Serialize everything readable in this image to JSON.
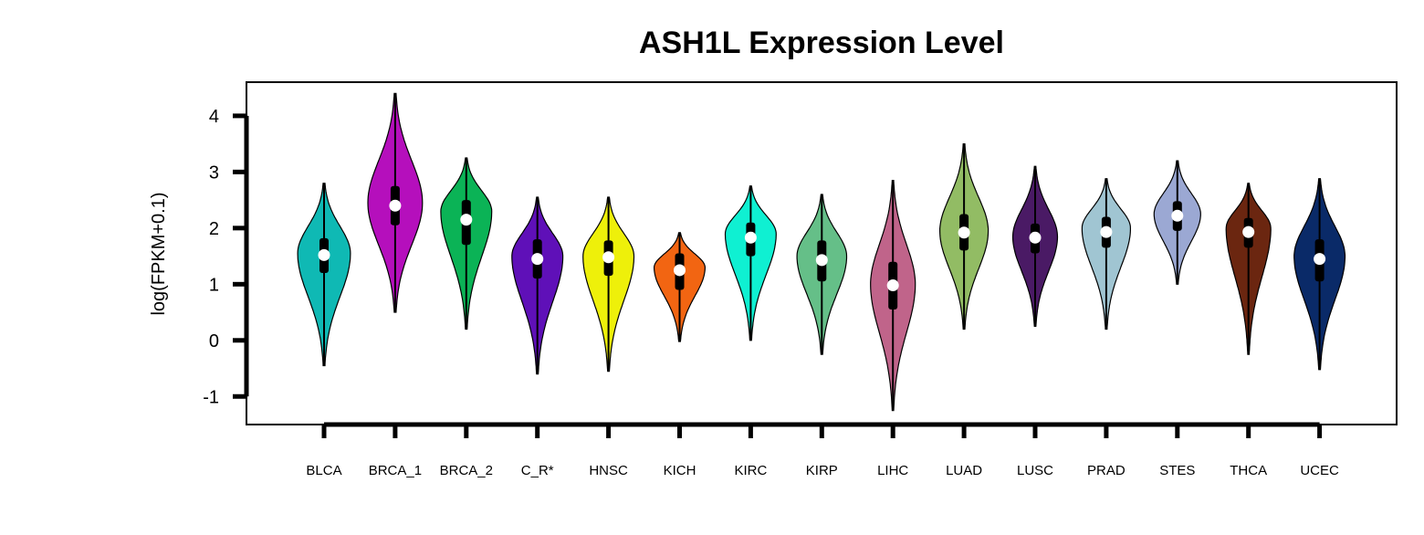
{
  "chart_data": {
    "type": "violin",
    "title": "ASH1L Expression Level",
    "ylabel": "log(FPKM+0.1)",
    "xlabel": "",
    "ylim": [
      -1.5,
      4.6
    ],
    "yticks": [
      -1,
      0,
      1,
      2,
      3,
      4
    ],
    "ytick_labels": [
      "-1",
      "0",
      "1",
      "2",
      "3",
      "4"
    ],
    "grid": false,
    "legend": "none",
    "categories": [
      "BLCA",
      "BRCA_1",
      "BRCA_2",
      "C_R*",
      "HNSC",
      "KICH",
      "KIRC",
      "KIRP",
      "LIHC",
      "LUAD",
      "LUSC",
      "PRAD",
      "STES",
      "THCA",
      "UCEC"
    ],
    "series": [
      {
        "category": "BLCA",
        "color": "#0fb9b4",
        "min": -0.45,
        "max": 2.8,
        "q1": 1.2,
        "median": 1.52,
        "q3": 1.82,
        "mode": 1.55,
        "halfwidth": 0.85
      },
      {
        "category": "BRCA_1",
        "color": "#b50fbc",
        "min": 0.5,
        "max": 4.4,
        "q1": 2.05,
        "median": 2.4,
        "q3": 2.75,
        "mode": 2.45,
        "halfwidth": 0.88
      },
      {
        "category": "BRCA_2",
        "color": "#0bb356",
        "min": 0.2,
        "max": 3.25,
        "q1": 1.7,
        "median": 2.15,
        "q3": 2.5,
        "mode": 2.3,
        "halfwidth": 0.82
      },
      {
        "category": "C_R*",
        "color": "#5f10b8",
        "min": -0.6,
        "max": 2.55,
        "q1": 1.1,
        "median": 1.45,
        "q3": 1.8,
        "mode": 1.5,
        "halfwidth": 0.82
      },
      {
        "category": "HNSC",
        "color": "#eef00a",
        "min": -0.55,
        "max": 2.55,
        "q1": 1.15,
        "median": 1.48,
        "q3": 1.78,
        "mode": 1.5,
        "halfwidth": 0.82
      },
      {
        "category": "KICH",
        "color": "#f26512",
        "min": -0.02,
        "max": 1.92,
        "q1": 0.9,
        "median": 1.25,
        "q3": 1.55,
        "mode": 1.3,
        "halfwidth": 0.82
      },
      {
        "category": "KIRC",
        "color": "#0ff0d2",
        "min": 0.0,
        "max": 2.75,
        "q1": 1.5,
        "median": 1.83,
        "q3": 2.1,
        "mode": 1.9,
        "halfwidth": 0.82
      },
      {
        "category": "KIRP",
        "color": "#65bf88",
        "min": -0.25,
        "max": 2.6,
        "q1": 1.05,
        "median": 1.43,
        "q3": 1.78,
        "mode": 1.5,
        "halfwidth": 0.8
      },
      {
        "category": "LIHC",
        "color": "#c0648a",
        "min": -1.25,
        "max": 2.85,
        "q1": 0.55,
        "median": 0.98,
        "q3": 1.4,
        "mode": 1.0,
        "halfwidth": 0.72
      },
      {
        "category": "LUAD",
        "color": "#92bc64",
        "min": 0.2,
        "max": 3.5,
        "q1": 1.6,
        "median": 1.92,
        "q3": 2.25,
        "mode": 1.95,
        "halfwidth": 0.78
      },
      {
        "category": "LUSC",
        "color": "#4a1a65",
        "min": 0.25,
        "max": 3.1,
        "q1": 1.55,
        "median": 1.83,
        "q3": 2.08,
        "mode": 1.85,
        "halfwidth": 0.72
      },
      {
        "category": "PRAD",
        "color": "#a0c5d2",
        "min": 0.2,
        "max": 2.88,
        "q1": 1.65,
        "median": 1.93,
        "q3": 2.2,
        "mode": 2.0,
        "halfwidth": 0.78
      },
      {
        "category": "STES",
        "color": "#9ba8d3",
        "min": 1.0,
        "max": 3.2,
        "q1": 1.95,
        "median": 2.22,
        "q3": 2.48,
        "mode": 2.25,
        "halfwidth": 0.75
      },
      {
        "category": "THCA",
        "color": "#6b2610",
        "min": -0.25,
        "max": 2.8,
        "q1": 1.65,
        "median": 1.93,
        "q3": 2.18,
        "mode": 2.0,
        "halfwidth": 0.72
      },
      {
        "category": "UCEC",
        "color": "#0a2a68",
        "min": -0.52,
        "max": 2.88,
        "q1": 1.05,
        "median": 1.45,
        "q3": 1.8,
        "mode": 1.5,
        "halfwidth": 0.82
      }
    ]
  }
}
